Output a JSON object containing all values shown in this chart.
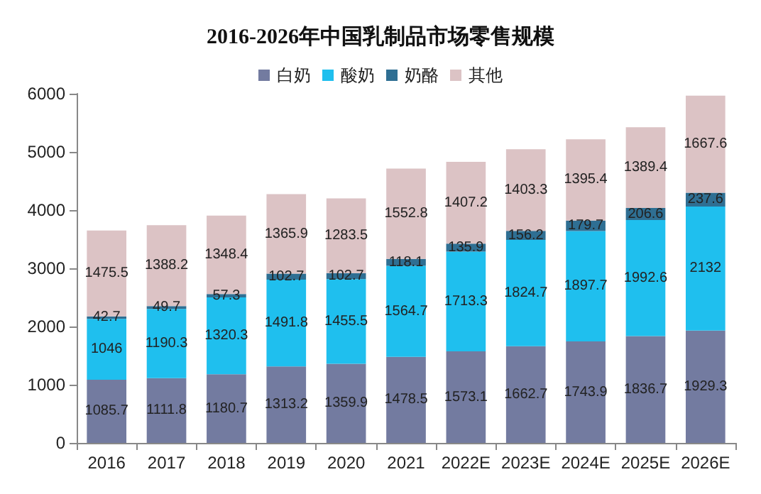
{
  "chart_data": {
    "type": "bar",
    "title": "2016-2026年中国乳制品市场零售规模",
    "stacked": true,
    "data_labels": true,
    "legend": "top",
    "grid": false,
    "categories": [
      "2016",
      "2017",
      "2018",
      "2019",
      "2020",
      "2021",
      "2022E",
      "2023E",
      "2024E",
      "2025E",
      "2026E"
    ],
    "series": [
      {
        "name": "白奶",
        "color": "#737ba0",
        "values": [
          1085.7,
          1111.8,
          1180.7,
          1313.2,
          1359.9,
          1478.5,
          1573.1,
          1662.7,
          1743.9,
          1836.7,
          1929.3
        ]
      },
      {
        "name": "酸奶",
        "color": "#1fbfee",
        "values": [
          1046,
          1190.3,
          1320.3,
          1491.8,
          1455.5,
          1564.7,
          1713.3,
          1824.7,
          1897.7,
          1992.6,
          2132
        ]
      },
      {
        "name": "奶酪",
        "color": "#2f6f93",
        "values": [
          42.7,
          49.7,
          57.3,
          102.7,
          102.7,
          118.1,
          135.9,
          156.2,
          179.7,
          206.6,
          237.6
        ]
      },
      {
        "name": "其他",
        "color": "#dcc3c5",
        "values": [
          1475.5,
          1388.2,
          1348.4,
          1365.9,
          1283.5,
          1552.8,
          1407.2,
          1403.3,
          1395.4,
          1389.4,
          1667.6
        ]
      }
    ],
    "ylim": [
      0,
      6000
    ],
    "yticks": [
      0,
      1000,
      2000,
      3000,
      4000,
      5000,
      6000
    ]
  }
}
